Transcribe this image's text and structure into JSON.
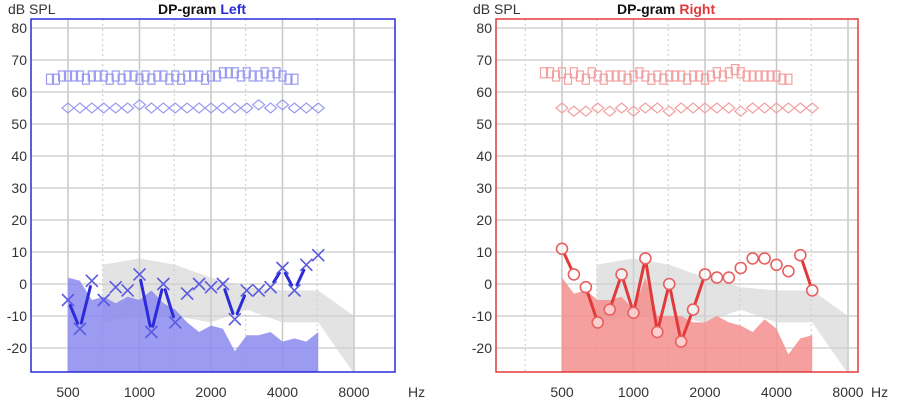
{
  "chart_data": [
    {
      "type": "line",
      "title_prefix": "DP-gram",
      "title_suffix": "Left",
      "accent": "#2b2bd9",
      "fill_color": "#8a8af0",
      "light_color": "#9a9af0",
      "ylabel": "dB SPL",
      "xunit": "Hz",
      "xscale": "log",
      "xlim": [
        349,
        11900
      ],
      "ylim": [
        -27.5,
        83
      ],
      "yticks": [
        80,
        70,
        60,
        50,
        40,
        30,
        20,
        10,
        0,
        -10,
        -20
      ],
      "xticks": [
        500,
        1000,
        2000,
        4000,
        8000
      ],
      "xtick_labels": [
        "500",
        "1000",
        "2000",
        "4000",
        "8000"
      ],
      "grid": true,
      "marker": "x",
      "frequencies": [
        500,
        561,
        630,
        707,
        794,
        891,
        1000,
        1122,
        1260,
        1414,
        1587,
        1782,
        2000,
        2245,
        2520,
        2828,
        3175,
        3564,
        4000,
        4490,
        5040,
        5657
      ],
      "dp_values": [
        -5,
        -14,
        1,
        -5,
        -1,
        -2,
        3,
        -15,
        0,
        -12,
        -3,
        0,
        -1,
        0,
        -11,
        -2,
        -2,
        -1,
        5,
        -2,
        6,
        9
      ],
      "dp_connected_segments": [
        [
          0,
          1
        ],
        [
          1,
          2
        ],
        [
          6,
          7
        ],
        [
          7,
          8
        ],
        [
          8,
          9
        ],
        [
          13,
          14
        ],
        [
          14,
          15
        ],
        [
          17,
          18
        ],
        [
          18,
          19
        ],
        [
          19,
          20
        ]
      ],
      "noise_floor": [
        2,
        1,
        -5,
        -4,
        -6,
        -4,
        -5,
        -2,
        -6,
        -8,
        -12,
        -15,
        -13,
        -14,
        -21,
        -16,
        -16,
        -15,
        -18,
        -17,
        -18,
        -15
      ],
      "stimulus_frequencies": [
        420,
        445,
        472,
        500,
        530,
        561,
        595,
        630,
        667,
        707,
        749,
        794,
        841,
        891,
        944,
        1000,
        1059,
        1122,
        1189,
        1260,
        1335,
        1414,
        1498,
        1587,
        1682,
        1782,
        1888,
        2000,
        2119,
        2245,
        2378,
        2520,
        2670,
        2828,
        2997,
        3175,
        3364,
        3564,
        3776,
        4000,
        4238,
        4490
      ],
      "l1_values": [
        64,
        64,
        65,
        65,
        65,
        65,
        64,
        65,
        65,
        65,
        64,
        65,
        64,
        65,
        65,
        64,
        65,
        64,
        65,
        65,
        64,
        65,
        64,
        65,
        65,
        65,
        64,
        65,
        65,
        66,
        66,
        66,
        65,
        66,
        65,
        65,
        66,
        65,
        66,
        65,
        64,
        64
      ],
      "l2_frequencies": [
        500,
        561,
        630,
        707,
        794,
        891,
        1000,
        1122,
        1260,
        1414,
        1587,
        1782,
        2000,
        2245,
        2520,
        2828,
        3175,
        3564,
        4000,
        4490,
        5040,
        5657
      ],
      "l2_values": [
        55,
        55,
        55,
        55,
        55,
        55,
        56,
        55,
        55,
        55,
        55,
        55,
        55,
        55,
        55,
        55,
        56,
        55,
        56,
        55,
        55,
        55
      ],
      "normative_band": {
        "frequencies": [
          700,
          1000,
          1414,
          2000,
          2828,
          4000,
          5657,
          8000
        ],
        "upper": [
          6,
          8,
          6,
          2,
          -1,
          -2,
          -2,
          -10
        ],
        "lower": [
          -12,
          -10,
          -10,
          -12,
          -8,
          -12,
          -12,
          -28
        ]
      }
    },
    {
      "type": "line",
      "title_prefix": "DP-gram",
      "title_suffix": "Right",
      "accent": "#e23a3a",
      "fill_color": "#f58e8e",
      "light_color": "#f2a0a0",
      "ylabel": "dB SPL",
      "xunit": "Hz",
      "xscale": "log",
      "xlim": [
        349,
        11900
      ],
      "ylim": [
        -27.5,
        83
      ],
      "yticks": [
        80,
        70,
        60,
        50,
        40,
        30,
        20,
        10,
        0,
        -10,
        -20
      ],
      "xticks": [
        500,
        1000,
        2000,
        4000,
        8000
      ],
      "xtick_labels": [
        "500",
        "1000",
        "2000",
        "4000",
        "8000"
      ],
      "grid": true,
      "marker": "o",
      "frequencies": [
        500,
        561,
        630,
        707,
        794,
        891,
        1000,
        1122,
        1260,
        1414,
        1587,
        1782,
        2000,
        2245,
        2520,
        2828,
        3175,
        3564,
        4000,
        4490,
        5040,
        5657
      ],
      "dp_values": [
        11,
        3,
        -1,
        -12,
        -8,
        3,
        -9,
        8,
        -15,
        0,
        -18,
        -8,
        3,
        2,
        2,
        5,
        8,
        8,
        6,
        4,
        9,
        -2
      ],
      "dp_connected_segments": [
        [
          0,
          1
        ],
        [
          2,
          3
        ],
        [
          4,
          5
        ],
        [
          5,
          6
        ],
        [
          6,
          7
        ],
        [
          7,
          8
        ],
        [
          8,
          9
        ],
        [
          9,
          10
        ],
        [
          10,
          11
        ],
        [
          11,
          12
        ],
        [
          20,
          21
        ]
      ],
      "noise_floor": [
        2,
        -3,
        -2,
        -5,
        -5,
        -4,
        -8,
        2,
        -10,
        -10,
        -10,
        -12,
        -12,
        -10,
        -12,
        -13,
        -15,
        -11,
        -14,
        -22,
        -17,
        -16
      ],
      "stimulus_frequencies": [
        420,
        445,
        472,
        500,
        530,
        561,
        595,
        630,
        667,
        707,
        749,
        794,
        841,
        891,
        944,
        1000,
        1059,
        1122,
        1189,
        1260,
        1335,
        1414,
        1498,
        1587,
        1682,
        1782,
        1888,
        2000,
        2119,
        2245,
        2378,
        2520,
        2670,
        2828,
        2997,
        3175,
        3364,
        3564,
        3776,
        4000,
        4238,
        4490
      ],
      "l1_values": [
        66,
        66,
        65,
        66,
        64,
        66,
        65,
        64,
        66,
        65,
        64,
        65,
        65,
        65,
        64,
        65,
        66,
        65,
        64,
        65,
        64,
        65,
        65,
        65,
        64,
        65,
        65,
        64,
        65,
        66,
        65,
        66,
        67,
        66,
        65,
        65,
        65,
        65,
        65,
        65,
        64,
        64
      ],
      "l2_frequencies": [
        500,
        561,
        630,
        707,
        794,
        891,
        1000,
        1122,
        1260,
        1414,
        1587,
        1782,
        2000,
        2245,
        2520,
        2828,
        3175,
        3564,
        4000,
        4490,
        5040,
        5657
      ],
      "l2_values": [
        55,
        54,
        54,
        55,
        54,
        55,
        54,
        55,
        55,
        54,
        55,
        55,
        55,
        55,
        55,
        54,
        55,
        55,
        55,
        55,
        55,
        55
      ],
      "normative_band": {
        "frequencies": [
          700,
          1000,
          1414,
          2000,
          2828,
          4000,
          5657,
          8000
        ],
        "upper": [
          6,
          8,
          6,
          2,
          -1,
          -2,
          -2,
          -10
        ],
        "lower": [
          -12,
          -10,
          -10,
          -12,
          -8,
          -12,
          -12,
          -28
        ]
      }
    }
  ]
}
